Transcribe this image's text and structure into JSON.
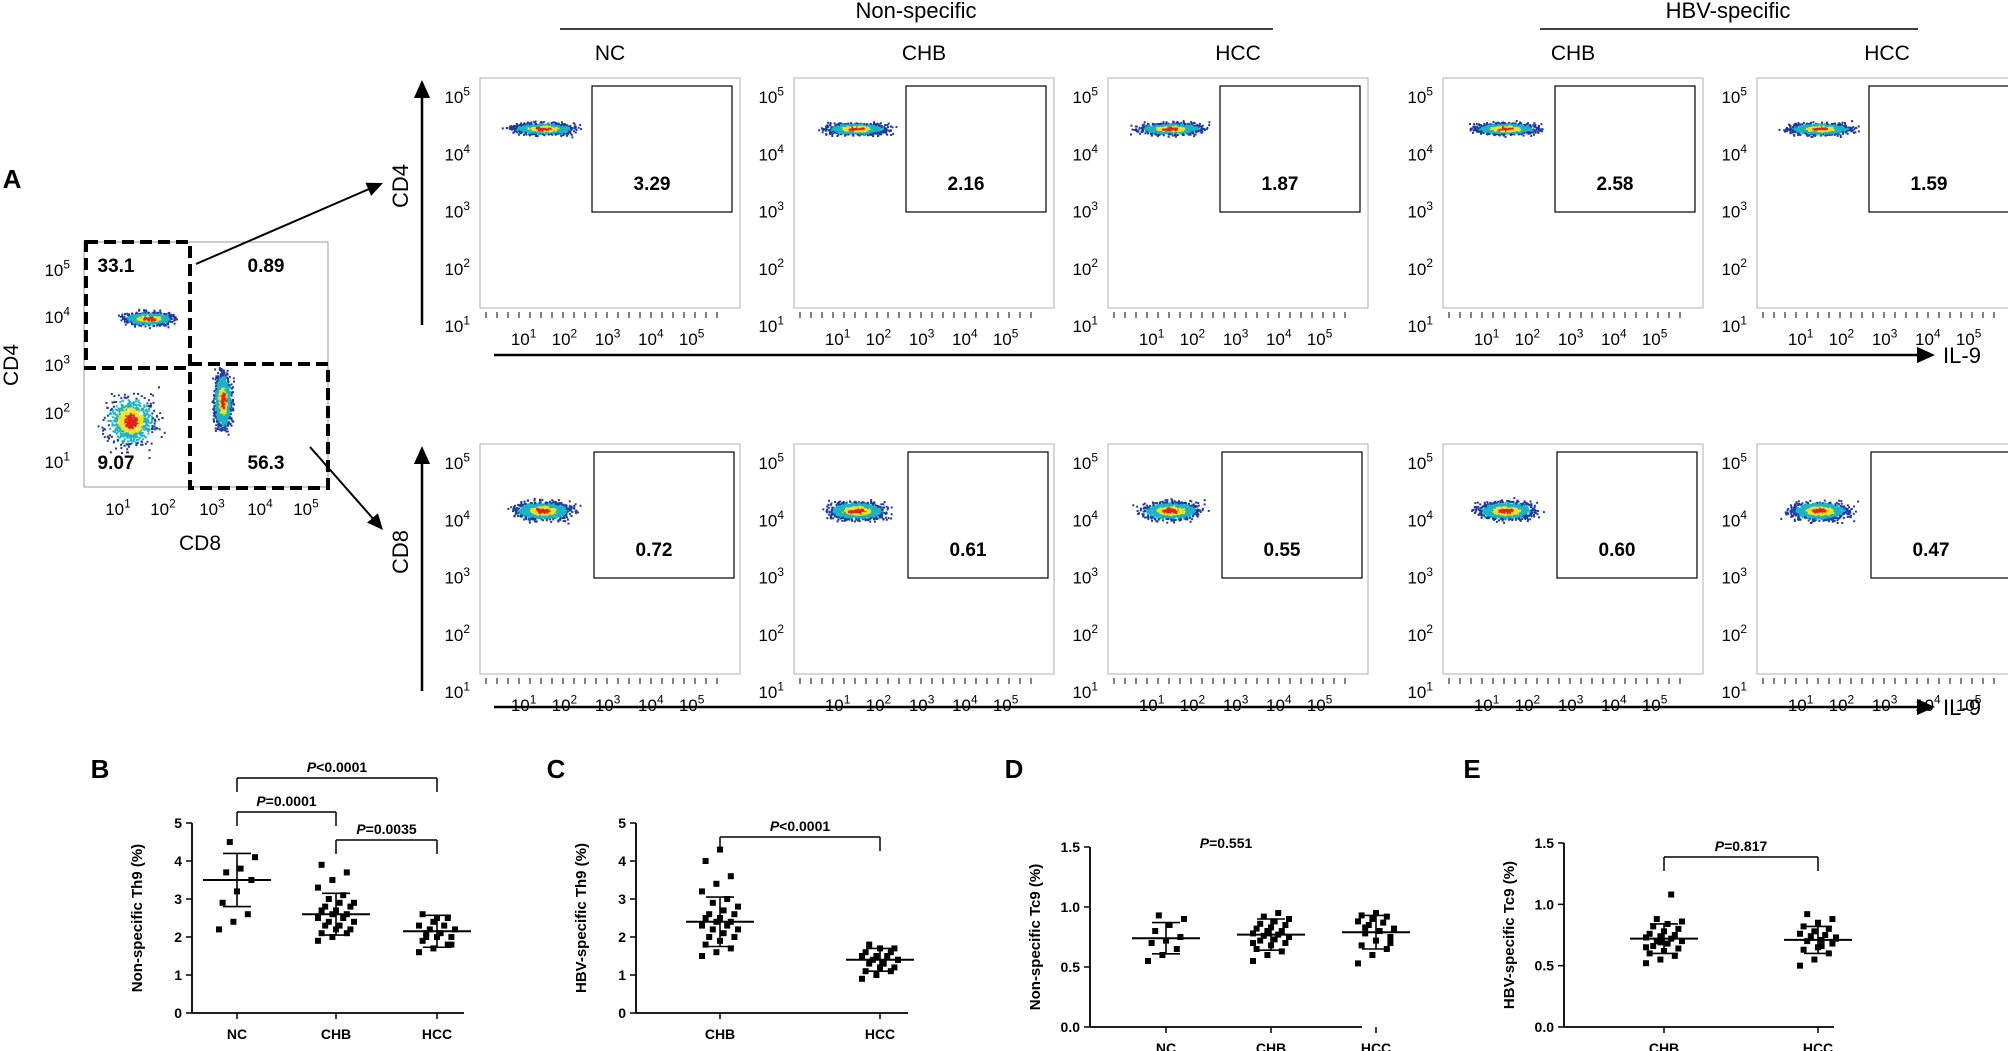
{
  "colors": {
    "ink": "#000000",
    "density_low": "#1f3a9e",
    "density_mid": "#19b5c4",
    "density_high": "#f2e21c",
    "density_peak": "#e2231a"
  },
  "panel_a": {
    "label": "A",
    "overview": {
      "x_label": "CD8",
      "y_label": "CD4",
      "y_ticks": [
        "10^5",
        "10^4",
        "10^3",
        "10^2",
        "10^1"
      ],
      "x_ticks": [
        "10^1",
        "10^2",
        "10^3",
        "10^4",
        "10^5"
      ],
      "quadrants": [
        {
          "name": "cd4-gate",
          "value": "33.1"
        },
        {
          "name": "double-positive",
          "value": "0.89"
        },
        {
          "name": "double-negative",
          "value": "9.07"
        },
        {
          "name": "cd8-gate",
          "value": "56.3"
        }
      ]
    },
    "header_nonspecific": "Non-specific",
    "header_hbv": "HBV-specific",
    "columns": [
      "NC",
      "CHB",
      "HCC",
      "CHB",
      "HCC"
    ],
    "row_cd4": {
      "y_label": "CD4",
      "gates": [
        "3.29",
        "2.16",
        "1.87",
        "2.58",
        "1.59"
      ]
    },
    "row_cd8": {
      "y_label": "CD8",
      "gates": [
        "0.72",
        "0.61",
        "0.55",
        "0.60",
        "0.47"
      ]
    },
    "x_axis_label": "IL-9",
    "y_ticks": [
      "10^5",
      "10^4",
      "10^3",
      "10^2",
      "10^1"
    ],
    "x_ticks": [
      "10^1",
      "10^2",
      "10^3",
      "10^4",
      "10^5"
    ]
  },
  "chart_data": [
    {
      "panel": "B",
      "type": "scatter",
      "ylabel": "Non-specific Th9 (%)",
      "ylim": [
        0,
        5
      ],
      "yticks": [
        "0",
        "1",
        "2",
        "3",
        "4",
        "5"
      ],
      "categories": [
        "NC",
        "CHB",
        "HCC"
      ],
      "series": [
        {
          "name": "NC",
          "mean": 3.5,
          "sd": 0.7,
          "values": [
            2.2,
            2.4,
            2.6,
            2.9,
            3.2,
            3.5,
            3.7,
            3.8,
            4.1,
            4.5
          ]
        },
        {
          "name": "CHB",
          "mean": 2.6,
          "sd": 0.55,
          "values": [
            1.9,
            2.0,
            2.1,
            2.1,
            2.2,
            2.2,
            2.3,
            2.3,
            2.4,
            2.4,
            2.5,
            2.5,
            2.6,
            2.6,
            2.7,
            2.7,
            2.8,
            2.8,
            2.9,
            2.9,
            3.0,
            3.1,
            3.3,
            3.5,
            3.7,
            3.9
          ]
        },
        {
          "name": "HCC",
          "mean": 2.15,
          "sd": 0.42,
          "values": [
            1.6,
            1.7,
            1.8,
            1.9,
            2.0,
            2.0,
            2.1,
            2.1,
            2.2,
            2.2,
            2.3,
            2.3,
            2.4,
            2.5,
            2.6,
            2.5,
            1.8,
            2.0
          ]
        }
      ],
      "comparisons": [
        {
          "label": "P=0.0001",
          "from": "NC",
          "to": "CHB"
        },
        {
          "label": "P=0.0035",
          "from": "CHB",
          "to": "HCC"
        },
        {
          "label": "P<0.0001",
          "from": "NC",
          "to": "HCC"
        }
      ]
    },
    {
      "panel": "C",
      "type": "scatter",
      "ylabel": "HBV-specific Th9 (%)",
      "ylim": [
        0,
        5
      ],
      "yticks": [
        "0",
        "1",
        "2",
        "3",
        "4",
        "5"
      ],
      "categories": [
        "CHB",
        "HCC"
      ],
      "series": [
        {
          "name": "CHB",
          "mean": 2.4,
          "sd": 0.65,
          "values": [
            1.5,
            1.6,
            1.7,
            1.8,
            1.9,
            2.0,
            2.0,
            2.1,
            2.2,
            2.2,
            2.3,
            2.3,
            2.4,
            2.4,
            2.5,
            2.5,
            2.6,
            2.6,
            2.7,
            2.8,
            2.9,
            3.0,
            3.2,
            3.4,
            3.6,
            4.0,
            4.3
          ]
        },
        {
          "name": "HCC",
          "mean": 1.4,
          "sd": 0.3,
          "values": [
            0.9,
            1.0,
            1.1,
            1.1,
            1.2,
            1.2,
            1.3,
            1.3,
            1.4,
            1.4,
            1.5,
            1.5,
            1.5,
            1.6,
            1.6,
            1.7,
            1.7,
            1.8,
            1.3,
            1.4
          ]
        }
      ],
      "comparisons": [
        {
          "label": "P<0.0001",
          "from": "CHB",
          "to": "HCC"
        }
      ]
    },
    {
      "panel": "D",
      "type": "scatter",
      "ylabel": "Non-specific Tc9 (%)",
      "ylim": [
        0,
        1.5
      ],
      "yticks": [
        "0.0",
        "0.5",
        "1.0",
        "1.5"
      ],
      "categories": [
        "NC",
        "CHB",
        "HCC"
      ],
      "series": [
        {
          "name": "NC",
          "mean": 0.74,
          "sd": 0.13,
          "values": [
            0.55,
            0.6,
            0.65,
            0.7,
            0.72,
            0.75,
            0.8,
            0.85,
            0.9,
            0.93
          ]
        },
        {
          "name": "CHB",
          "mean": 0.77,
          "sd": 0.13,
          "values": [
            0.55,
            0.6,
            0.63,
            0.65,
            0.68,
            0.7,
            0.72,
            0.73,
            0.75,
            0.76,
            0.77,
            0.78,
            0.8,
            0.8,
            0.82,
            0.83,
            0.85,
            0.86,
            0.88,
            0.9,
            0.92,
            0.95,
            0.7,
            0.78
          ]
        },
        {
          "name": "HCC",
          "mean": 0.79,
          "sd": 0.14,
          "values": [
            0.53,
            0.6,
            0.65,
            0.68,
            0.72,
            0.75,
            0.78,
            0.8,
            0.82,
            0.85,
            0.87,
            0.88,
            0.9,
            0.92,
            0.93,
            0.95,
            0.7,
            0.83
          ]
        }
      ],
      "annotation": "P=0.551"
    },
    {
      "panel": "E",
      "type": "scatter",
      "ylabel": "HBV-specific Tc9 (%)",
      "ylim": [
        0,
        1.5
      ],
      "yticks": [
        "0.0",
        "0.5",
        "1.0",
        "1.5"
      ],
      "categories": [
        "CHB",
        "HCC"
      ],
      "series": [
        {
          "name": "CHB",
          "mean": 0.72,
          "sd": 0.12,
          "values": [
            0.52,
            0.55,
            0.58,
            0.6,
            0.62,
            0.64,
            0.66,
            0.68,
            0.7,
            0.7,
            0.72,
            0.73,
            0.74,
            0.75,
            0.76,
            0.78,
            0.8,
            0.82,
            0.84,
            0.86,
            0.88,
            1.08,
            0.65,
            0.69
          ]
        },
        {
          "name": "HCC",
          "mean": 0.71,
          "sd": 0.11,
          "values": [
            0.5,
            0.55,
            0.6,
            0.63,
            0.65,
            0.68,
            0.7,
            0.71,
            0.72,
            0.74,
            0.75,
            0.76,
            0.78,
            0.8,
            0.82,
            0.85,
            0.88,
            0.92,
            0.66,
            0.73
          ]
        }
      ],
      "comparisons": [
        {
          "label": "P=0.817",
          "from": "CHB",
          "to": "HCC"
        }
      ]
    }
  ]
}
